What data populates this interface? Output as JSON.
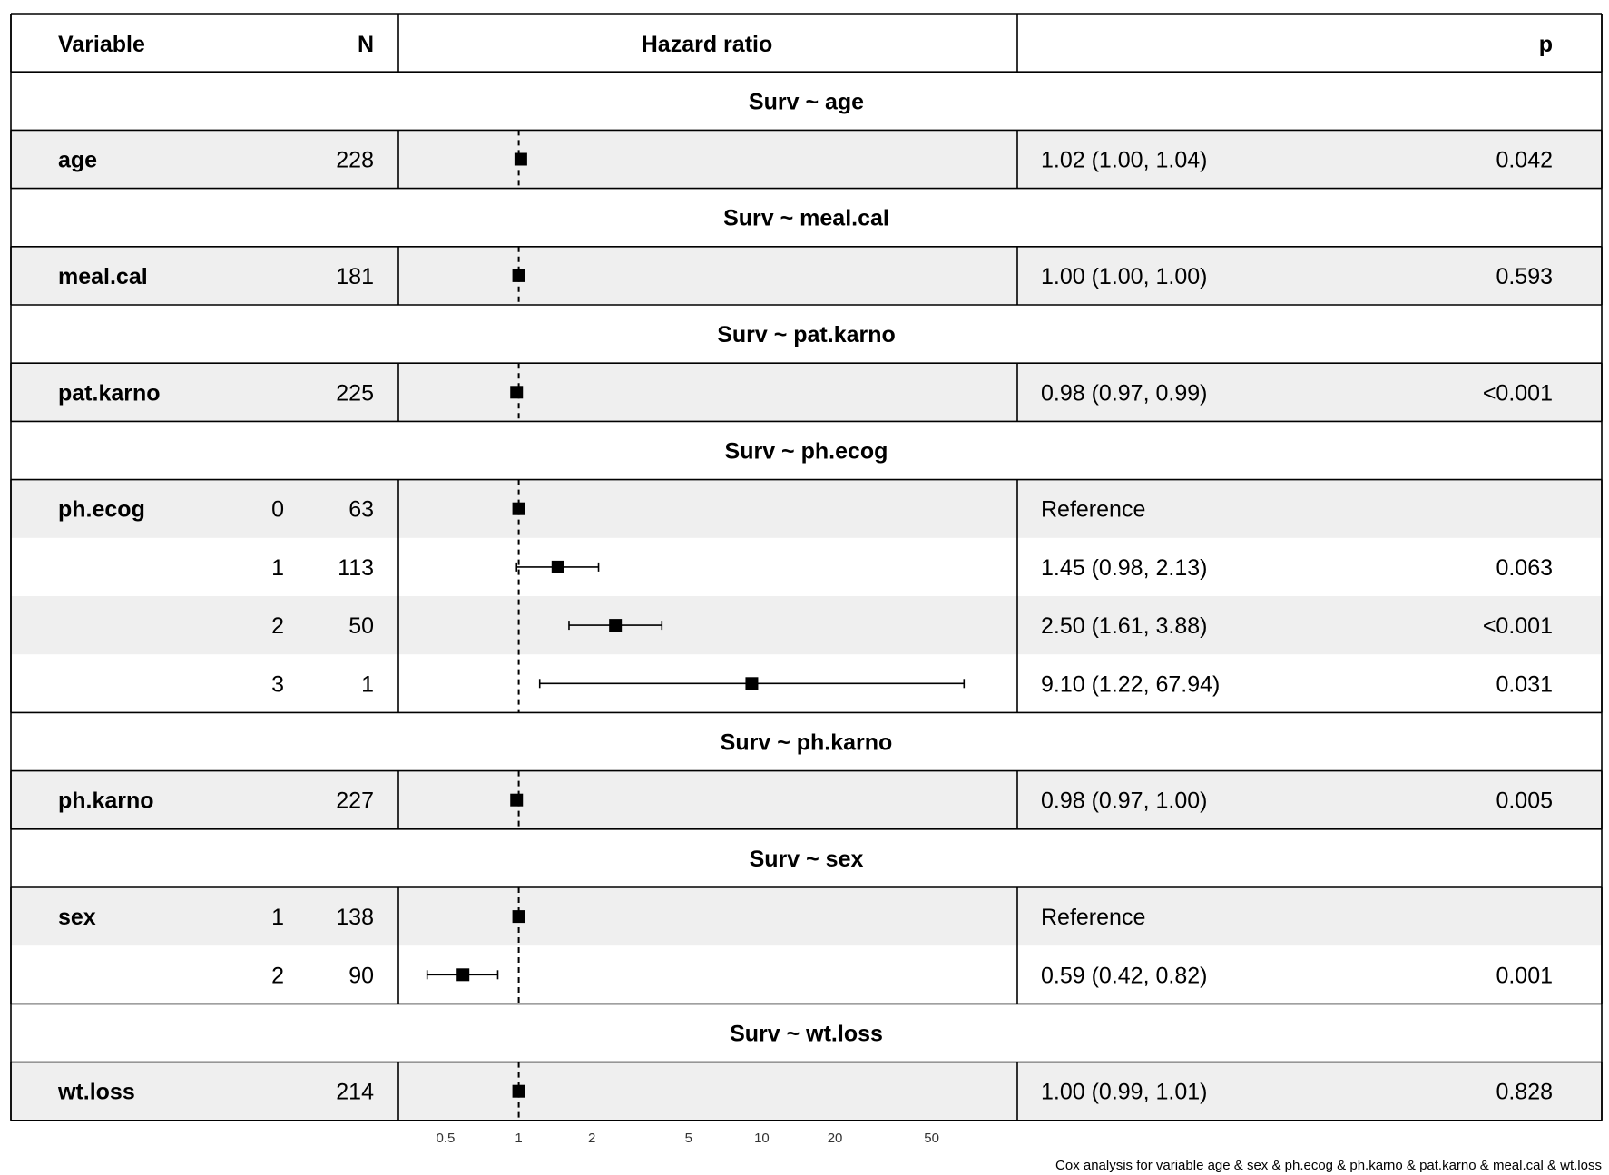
{
  "header": {
    "variable": "Variable",
    "n": "N",
    "hazard_ratio": "Hazard ratio",
    "p": "p"
  },
  "caption": "Cox analysis for variable age & sex & ph.ecog & ph.karno & pat.karno & meal.cal & wt.loss",
  "colors": {
    "shade": "#efefef",
    "line": "#000000",
    "background": "#ffffff"
  },
  "chart_data": {
    "type": "forest",
    "x_scale": "log",
    "reference_line": 1,
    "xlim": [
      0.4,
      90
    ],
    "ticks": [
      "0.5",
      "1",
      "2",
      "5",
      "10",
      "20",
      "50"
    ],
    "tick_values": [
      0.5,
      1,
      2,
      5,
      10,
      20,
      50
    ],
    "sections": [
      {
        "title": "Surv ~ age",
        "rows": [
          {
            "variable": "age",
            "level": "",
            "n": "228",
            "hr": 1.02,
            "lo": 1.0,
            "hi": 1.04,
            "text": "1.02 (1.00, 1.04)",
            "p": "0.042"
          }
        ]
      },
      {
        "title": "Surv ~ meal.cal",
        "rows": [
          {
            "variable": "meal.cal",
            "level": "",
            "n": "181",
            "hr": 1.0,
            "lo": 1.0,
            "hi": 1.0,
            "text": "1.00 (1.00, 1.00)",
            "p": "0.593"
          }
        ]
      },
      {
        "title": "Surv ~ pat.karno",
        "rows": [
          {
            "variable": "pat.karno",
            "level": "",
            "n": "225",
            "hr": 0.98,
            "lo": 0.97,
            "hi": 0.99,
            "text": "0.98 (0.97, 0.99)",
            "p": "<0.001"
          }
        ]
      },
      {
        "title": "Surv ~ ph.ecog",
        "rows": [
          {
            "variable": "ph.ecog",
            "level": "0",
            "n": "63",
            "hr": 1.0,
            "lo": 1.0,
            "hi": 1.0,
            "text": "Reference",
            "p": ""
          },
          {
            "variable": "",
            "level": "1",
            "n": "113",
            "hr": 1.45,
            "lo": 0.98,
            "hi": 2.13,
            "text": "1.45 (0.98, 2.13)",
            "p": "0.063"
          },
          {
            "variable": "",
            "level": "2",
            "n": "50",
            "hr": 2.5,
            "lo": 1.61,
            "hi": 3.88,
            "text": "2.50 (1.61, 3.88)",
            "p": "<0.001"
          },
          {
            "variable": "",
            "level": "3",
            "n": "1",
            "hr": 9.1,
            "lo": 1.22,
            "hi": 67.94,
            "text": "9.10 (1.22, 67.94)",
            "p": "0.031"
          }
        ]
      },
      {
        "title": "Surv ~ ph.karno",
        "rows": [
          {
            "variable": "ph.karno",
            "level": "",
            "n": "227",
            "hr": 0.98,
            "lo": 0.97,
            "hi": 1.0,
            "text": "0.98 (0.97, 1.00)",
            "p": "0.005"
          }
        ]
      },
      {
        "title": "Surv ~ sex",
        "rows": [
          {
            "variable": "sex",
            "level": "1",
            "n": "138",
            "hr": 1.0,
            "lo": 1.0,
            "hi": 1.0,
            "text": "Reference",
            "p": ""
          },
          {
            "variable": "",
            "level": "2",
            "n": "90",
            "hr": 0.59,
            "lo": 0.42,
            "hi": 0.82,
            "text": "0.59 (0.42, 0.82)",
            "p": "0.001"
          }
        ]
      },
      {
        "title": "Surv ~ wt.loss",
        "rows": [
          {
            "variable": "wt.loss",
            "level": "",
            "n": "214",
            "hr": 1.0,
            "lo": 0.99,
            "hi": 1.01,
            "text": "1.00 (0.99, 1.01)",
            "p": "0.828"
          }
        ]
      }
    ]
  }
}
